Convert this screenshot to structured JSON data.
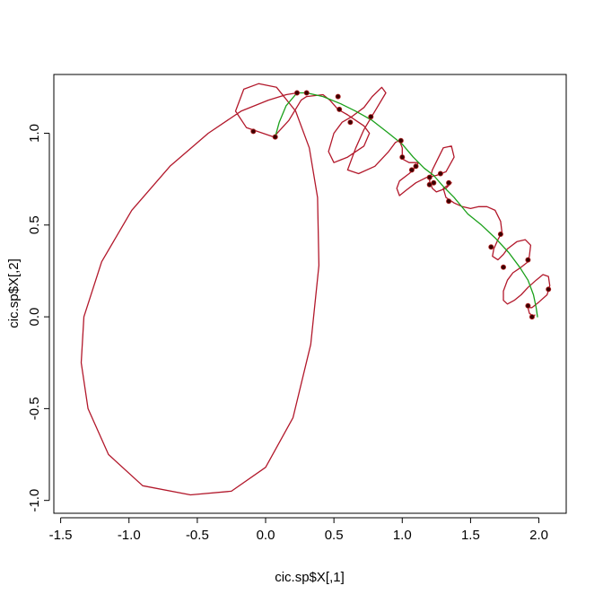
{
  "chart_data": {
    "type": "line",
    "title": "",
    "xlabel": "cic.sp$X[,1]",
    "ylabel": "cic.sp$X[,2]",
    "xlim": [
      -1.55,
      2.2
    ],
    "ylim": [
      -1.07,
      1.32
    ],
    "x_ticks": [
      -1.5,
      -1.0,
      -0.5,
      0.0,
      0.5,
      1.0,
      1.5,
      2.0
    ],
    "x_tick_labels": [
      "-1.5",
      "-1.0",
      "-0.5",
      "0.0",
      "0.5",
      "1.0",
      "1.5",
      "2.0"
    ],
    "y_ticks": [
      -1.0,
      -0.5,
      0.0,
      0.5,
      1.0
    ],
    "y_tick_labels": [
      "-1.0",
      "-0.5",
      "0.0",
      "0.5",
      "1.0"
    ],
    "grid": false,
    "legend": "none",
    "colors": {
      "red_curve": "#b2182b",
      "green_curve": "#1aa01a",
      "points": "#3a0000"
    },
    "series": [
      {
        "color": "#b2182b",
        "points": [
          [
            0.23,
            1.22
          ],
          [
            0.15,
            1.21
          ],
          [
            0.02,
            1.18
          ],
          [
            -0.18,
            1.12
          ],
          [
            -0.42,
            1.0
          ],
          [
            -0.7,
            0.82
          ],
          [
            -0.98,
            0.58
          ],
          [
            -1.2,
            0.3
          ],
          [
            -1.33,
            0.0
          ],
          [
            -1.35,
            -0.25
          ],
          [
            -1.3,
            -0.5
          ],
          [
            -1.15,
            -0.75
          ],
          [
            -0.9,
            -0.92
          ],
          [
            -0.55,
            -0.97
          ],
          [
            -0.25,
            -0.95
          ],
          [
            0.0,
            -0.82
          ],
          [
            0.2,
            -0.55
          ],
          [
            0.33,
            -0.15
          ],
          [
            0.39,
            0.28
          ],
          [
            0.38,
            0.65
          ],
          [
            0.32,
            0.92
          ],
          [
            0.22,
            1.12
          ],
          [
            0.08,
            1.25
          ],
          [
            -0.05,
            1.27
          ],
          [
            -0.16,
            1.24
          ],
          [
            -0.22,
            1.12
          ],
          [
            -0.14,
            1.03
          ],
          [
            -0.02,
            1.0
          ],
          [
            0.06,
            0.98
          ],
          [
            0.17,
            1.07
          ],
          [
            0.26,
            1.18
          ],
          [
            0.3,
            1.2
          ],
          [
            0.42,
            1.21
          ],
          [
            0.47,
            1.18
          ],
          [
            0.53,
            1.13
          ],
          [
            0.6,
            1.1
          ],
          [
            0.66,
            1.07
          ],
          [
            0.72,
            1.04
          ],
          [
            0.76,
            1.0
          ],
          [
            0.72,
            0.93
          ],
          [
            0.6,
            0.87
          ],
          [
            0.5,
            0.84
          ],
          [
            0.46,
            0.9
          ],
          [
            0.5,
            1.0
          ],
          [
            0.56,
            1.06
          ],
          [
            0.63,
            1.09
          ],
          [
            0.72,
            1.14
          ],
          [
            0.78,
            1.2
          ],
          [
            0.85,
            1.25
          ],
          [
            0.88,
            1.22
          ],
          [
            0.8,
            1.12
          ],
          [
            0.72,
            1.02
          ],
          [
            0.66,
            0.92
          ],
          [
            0.62,
            0.84
          ],
          [
            0.6,
            0.8
          ],
          [
            0.68,
            0.78
          ],
          [
            0.8,
            0.82
          ],
          [
            0.9,
            0.9
          ],
          [
            0.95,
            0.95
          ],
          [
            0.98,
            0.96
          ],
          [
            1.0,
            0.92
          ],
          [
            1.0,
            0.86
          ],
          [
            1.05,
            0.84
          ],
          [
            1.12,
            0.84
          ],
          [
            1.08,
            0.8
          ],
          [
            1.05,
            0.78
          ],
          [
            0.98,
            0.74
          ],
          [
            0.96,
            0.7
          ],
          [
            0.98,
            0.66
          ],
          [
            1.03,
            0.69
          ],
          [
            1.1,
            0.73
          ],
          [
            1.18,
            0.76
          ],
          [
            1.25,
            0.77
          ],
          [
            1.32,
            0.79
          ],
          [
            1.38,
            0.87
          ],
          [
            1.36,
            0.93
          ],
          [
            1.3,
            0.92
          ],
          [
            1.26,
            0.86
          ],
          [
            1.22,
            0.8
          ],
          [
            1.2,
            0.74
          ],
          [
            1.22,
            0.7
          ],
          [
            1.25,
            0.68
          ],
          [
            1.32,
            0.7
          ],
          [
            1.36,
            0.73
          ],
          [
            1.3,
            0.7
          ],
          [
            1.32,
            0.65
          ],
          [
            1.38,
            0.62
          ],
          [
            1.44,
            0.6
          ],
          [
            1.5,
            0.59
          ],
          [
            1.56,
            0.6
          ],
          [
            1.62,
            0.6
          ],
          [
            1.68,
            0.58
          ],
          [
            1.72,
            0.52
          ],
          [
            1.73,
            0.46
          ],
          [
            1.7,
            0.42
          ],
          [
            1.67,
            0.37
          ],
          [
            1.66,
            0.33
          ],
          [
            1.7,
            0.31
          ],
          [
            1.74,
            0.34
          ],
          [
            1.77,
            0.37
          ],
          [
            1.84,
            0.41
          ],
          [
            1.9,
            0.42
          ],
          [
            1.94,
            0.39
          ],
          [
            1.93,
            0.33
          ],
          [
            1.92,
            0.3
          ],
          [
            1.87,
            0.27
          ],
          [
            1.81,
            0.24
          ],
          [
            1.77,
            0.2
          ],
          [
            1.74,
            0.14
          ],
          [
            1.74,
            0.09
          ],
          [
            1.77,
            0.07
          ],
          [
            1.82,
            0.09
          ],
          [
            1.87,
            0.12
          ],
          [
            1.92,
            0.16
          ],
          [
            1.98,
            0.2
          ],
          [
            2.03,
            0.23
          ],
          [
            2.07,
            0.22
          ],
          [
            2.08,
            0.17
          ],
          [
            2.06,
            0.12
          ],
          [
            2.0,
            0.08
          ],
          [
            1.95,
            0.05
          ],
          [
            1.92,
            0.05
          ],
          [
            1.93,
            0.02
          ],
          [
            1.96,
            0.0
          ],
          [
            1.97,
            0.01
          ]
        ]
      },
      {
        "color": "#1aa01a",
        "points": [
          [
            0.07,
            0.98
          ],
          [
            0.1,
            1.06
          ],
          [
            0.15,
            1.15
          ],
          [
            0.23,
            1.22
          ],
          [
            0.3,
            1.22
          ],
          [
            0.42,
            1.2
          ],
          [
            0.55,
            1.16
          ],
          [
            0.66,
            1.12
          ],
          [
            0.78,
            1.07
          ],
          [
            0.9,
            1.0
          ],
          [
            1.0,
            0.94
          ],
          [
            1.08,
            0.87
          ],
          [
            1.16,
            0.81
          ],
          [
            1.23,
            0.77
          ],
          [
            1.3,
            0.71
          ],
          [
            1.38,
            0.65
          ],
          [
            1.48,
            0.56
          ],
          [
            1.58,
            0.5
          ],
          [
            1.68,
            0.43
          ],
          [
            1.78,
            0.35
          ],
          [
            1.86,
            0.27
          ],
          [
            1.92,
            0.2
          ],
          [
            1.96,
            0.12
          ],
          [
            1.98,
            0.05
          ],
          [
            1.99,
            0.0
          ]
        ]
      }
    ],
    "markers": [
      [
        -0.09,
        1.01
      ],
      [
        0.07,
        0.98
      ],
      [
        0.23,
        1.22
      ],
      [
        0.3,
        1.22
      ],
      [
        0.53,
        1.2
      ],
      [
        0.54,
        1.13
      ],
      [
        0.62,
        1.06
      ],
      [
        0.77,
        1.09
      ],
      [
        0.99,
        0.96
      ],
      [
        1.0,
        0.87
      ],
      [
        1.07,
        0.8
      ],
      [
        1.1,
        0.82
      ],
      [
        1.2,
        0.76
      ],
      [
        1.2,
        0.72
      ],
      [
        1.23,
        0.73
      ],
      [
        1.28,
        0.78
      ],
      [
        1.34,
        0.73
      ],
      [
        1.34,
        0.63
      ],
      [
        1.65,
        0.38
      ],
      [
        1.72,
        0.45
      ],
      [
        1.74,
        0.27
      ],
      [
        1.92,
        0.31
      ],
      [
        1.92,
        0.06
      ],
      [
        1.95,
        0.0
      ],
      [
        2.07,
        0.15
      ]
    ]
  }
}
